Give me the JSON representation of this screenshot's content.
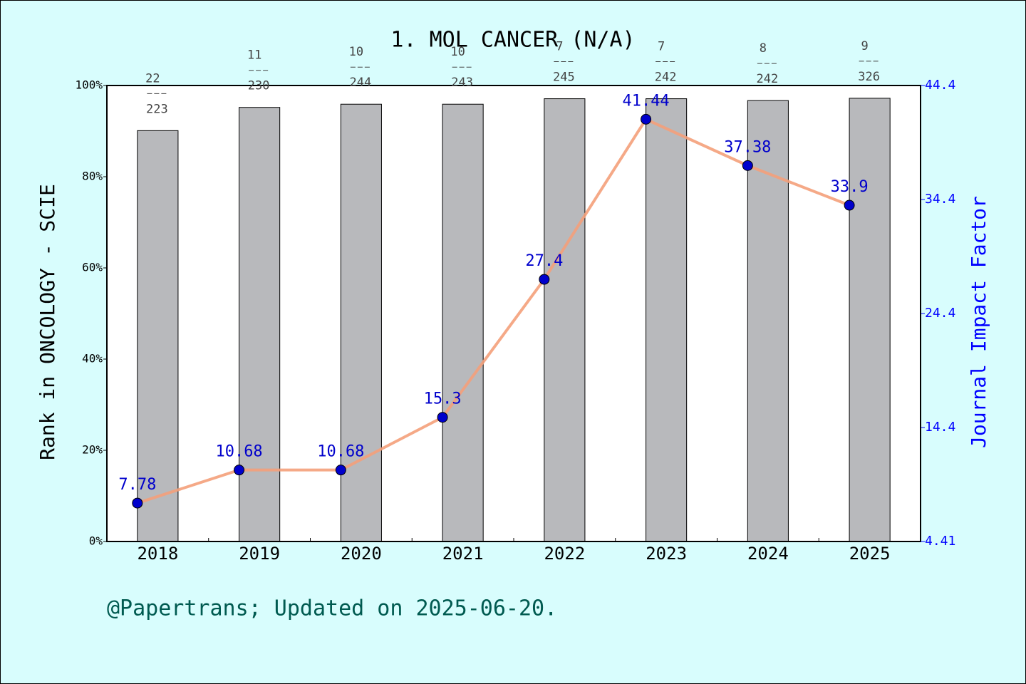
{
  "chart_data": {
    "type": "bar",
    "title": "1. MOL CANCER (N/A)",
    "ylabel": "Rank in ONCOLOGY - SCIE",
    "y2label": "Journal Impact Factor",
    "categories": [
      "2018",
      "2019",
      "2020",
      "2021",
      "2022",
      "2023",
      "2024",
      "2025"
    ],
    "series": [
      {
        "type": "bar",
        "color": "#b8b9bc",
        "values": [
          90.1,
          95.2,
          95.9,
          95.9,
          97.1,
          97.1,
          96.7,
          97.2
        ],
        "ranks": [
          22,
          11,
          10,
          10,
          7,
          7,
          8,
          9
        ],
        "totals": [
          223,
          230,
          244,
          243,
          245,
          242,
          242,
          326
        ]
      },
      {
        "type": "line",
        "axis": "y2",
        "color": "#f4a07a",
        "marker_color": "#0000cc",
        "values": [
          7.78,
          10.68,
          10.68,
          15.3,
          27.4,
          41.44,
          37.38,
          33.9
        ]
      }
    ],
    "ylim": [
      0,
      100
    ],
    "yticks": [
      {
        "value": 0,
        "label": "0%"
      },
      {
        "value": 20,
        "label": "20%"
      },
      {
        "value": 40,
        "label": "40%"
      },
      {
        "value": 60,
        "label": "60%"
      },
      {
        "value": 80,
        "label": "80%"
      },
      {
        "value": 100,
        "label": "100%"
      }
    ],
    "y2lim": [
      4.41,
      44.4
    ],
    "y2ticks": [
      4.41,
      14.4,
      24.4,
      34.4,
      44.4
    ]
  },
  "footer": "@Papertrans; Updated on 2025-06-20."
}
